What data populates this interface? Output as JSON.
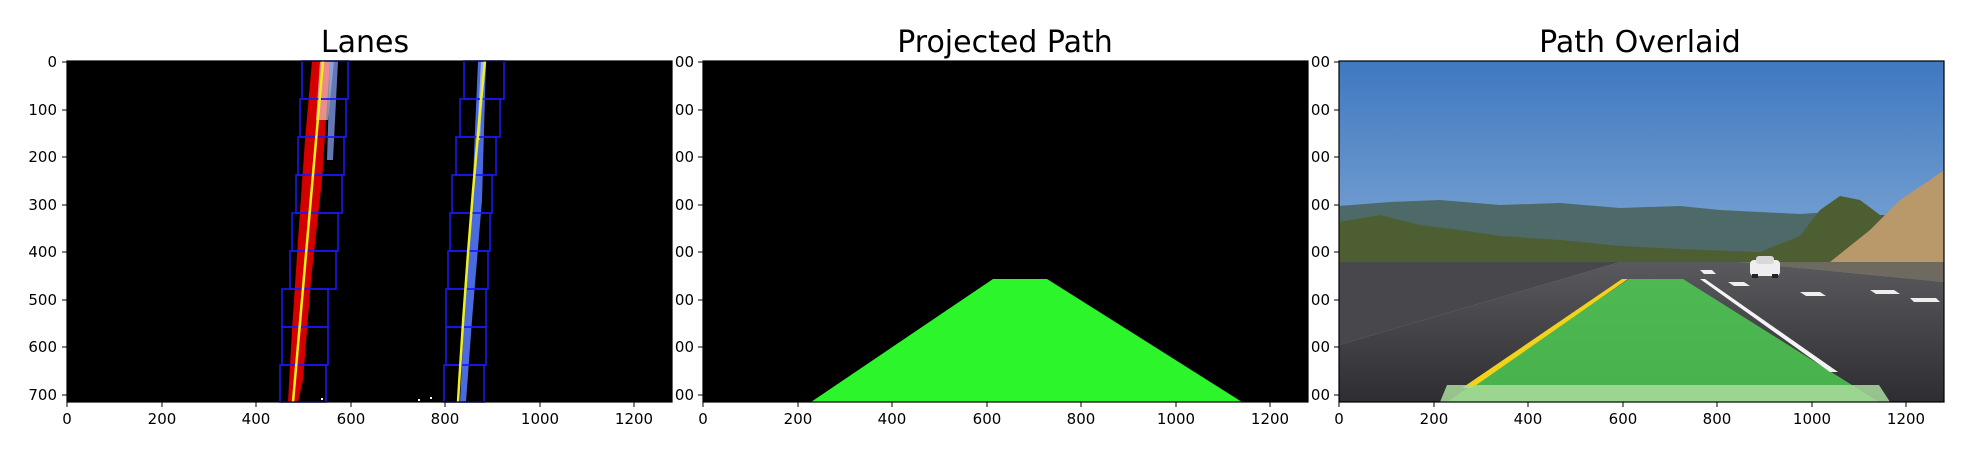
{
  "panels": [
    {
      "title": "Lanes",
      "x_ticks": [
        "0",
        "200",
        "400",
        "600",
        "800",
        "1000",
        "1200"
      ],
      "y_ticks": [
        "0",
        "100",
        "200",
        "300",
        "400",
        "500",
        "600",
        "700"
      ]
    },
    {
      "title": "Projected Path",
      "x_ticks": [
        "0",
        "200",
        "400",
        "600",
        "800",
        "1000",
        "1200"
      ],
      "y_ticks": [
        "00",
        "00",
        "00",
        "00",
        "00",
        "00",
        "00",
        "00"
      ],
      "y_ticks_note_hidden": ""
    },
    {
      "title": "Path Overlaid",
      "x_ticks": [
        "0",
        "200",
        "400",
        "600",
        "800",
        "1000",
        "1200"
      ],
      "y_ticks": [
        "00",
        "00",
        "00",
        "00",
        "00",
        "00",
        "00",
        "00"
      ]
    }
  ],
  "colors": {
    "background": "#000000",
    "lane_window": "#1a1aff",
    "left_lane_pixels": "#dd0000",
    "fit_line": "#f0f020",
    "right_lane_pixels": "#8fa8ff",
    "path_fill": "#2cf52c",
    "sky": "#5a8ac8",
    "road": "#3c3c40",
    "overlay_path": "#56c85a",
    "hill": "#b0905a"
  }
}
